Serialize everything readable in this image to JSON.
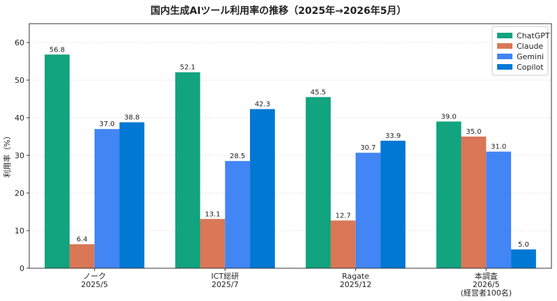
{
  "chart_data": {
    "type": "bar",
    "title": "国内生成AIツール利用率の推移（2025年→2026年5月）",
    "ylabel": "利用率（%）",
    "xlabel": "",
    "ylim": [
      0,
      65
    ],
    "yticks": [
      0,
      10,
      20,
      30,
      40,
      50,
      60
    ],
    "grid": true,
    "legend_position": "top-right",
    "categories": [
      [
        "ノーク",
        "2025/5"
      ],
      [
        "ICT総研",
        "2025/7"
      ],
      [
        "Ragate",
        "2025/12"
      ],
      [
        "本調査",
        "2026/5",
        "(経営者100名)"
      ]
    ],
    "series": [
      {
        "name": "ChatGPT",
        "color": "#12a37f",
        "values": [
          56.8,
          52.1,
          45.5,
          39.0
        ]
      },
      {
        "name": "Claude",
        "color": "#d97757",
        "values": [
          6.4,
          13.1,
          12.7,
          35.0
        ]
      },
      {
        "name": "Gemini",
        "color": "#4285f4",
        "values": [
          37.0,
          28.5,
          30.7,
          31.0
        ]
      },
      {
        "name": "Copilot",
        "color": "#0078d4",
        "values": [
          38.8,
          42.3,
          33.9,
          5.0
        ]
      }
    ]
  }
}
